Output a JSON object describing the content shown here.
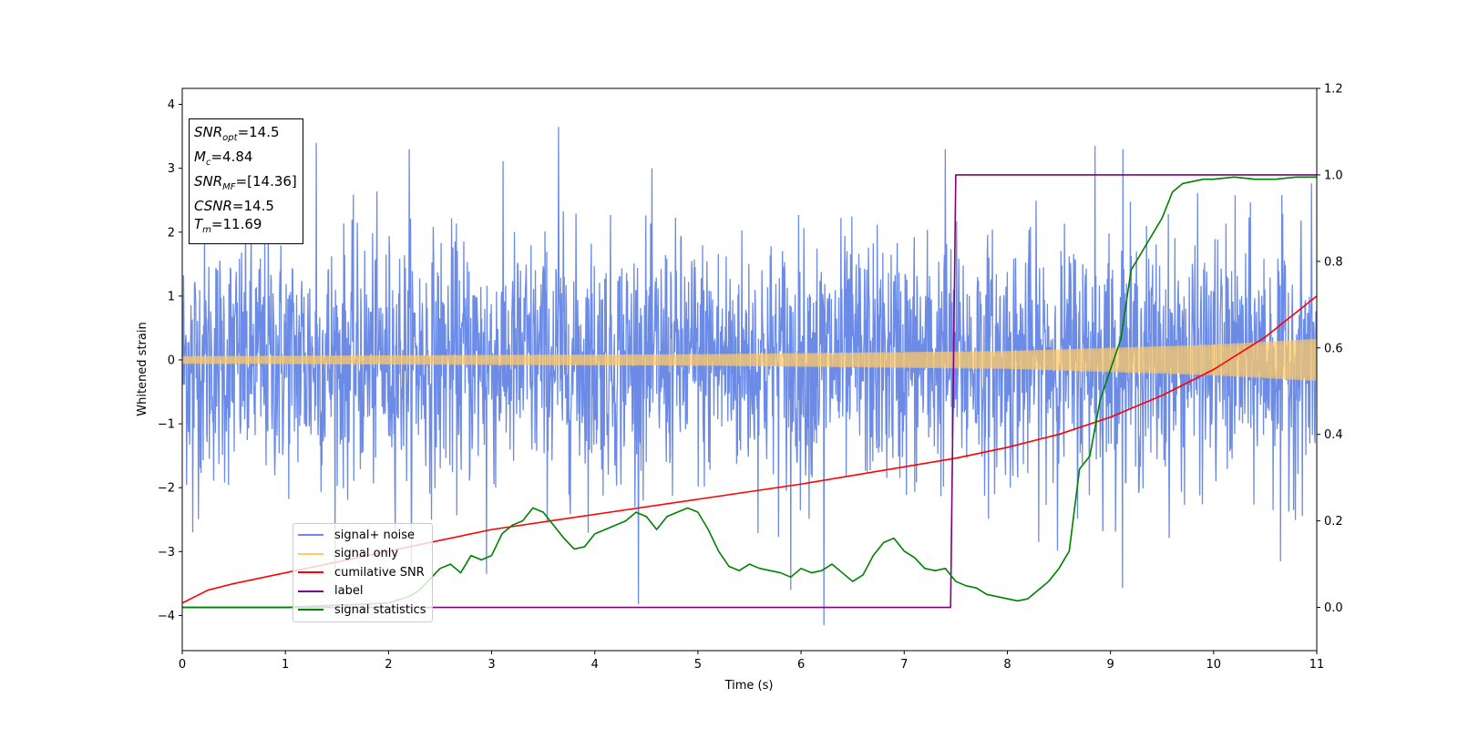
{
  "chart_data": {
    "type": "line",
    "xlabel": "Time (s)",
    "ylabel": "Whitened strain",
    "xlim": [
      0,
      11
    ],
    "ylim": [
      -4.55,
      4.25
    ],
    "y2lim": [
      -0.1,
      1.2
    ],
    "xticks": [
      "0",
      "1",
      "2",
      "3",
      "4",
      "5",
      "6",
      "7",
      "8",
      "9",
      "10",
      "11"
    ],
    "yticks": [
      "4",
      "3",
      "2",
      "1",
      "0",
      "−1",
      "−2",
      "−3",
      "−4"
    ],
    "y2ticks": [
      "1.2",
      "1.0",
      "0.8",
      "0.6",
      "0.4",
      "0.2",
      "0.0"
    ],
    "grid": false,
    "legend_position": "lower-left",
    "info_box": {
      "snr_opt_label": "SNR",
      "snr_opt_sub": "opt",
      "snr_opt_value": "=14.5",
      "mc_label": "M",
      "mc_sub": "c",
      "mc_value": "=4.84",
      "snr_mf_label": "SNR",
      "snr_mf_sub": "MF",
      "snr_mf_value": "=[14.36]",
      "csnr_label": "CSNR",
      "csnr_value": "=14.5",
      "tm_label": "T",
      "tm_sub": "m",
      "tm_value": "=11.69"
    },
    "series": [
      {
        "name": "signal+ noise",
        "color": "#6b8be6",
        "axis": "left",
        "description_values": "white noise around 0, amplitude roughly between -2.5 and 2.5",
        "x_range": [
          0,
          11
        ],
        "noise_std": 0.95,
        "peaks": [
          {
            "x": 1.3,
            "y": 3.4
          },
          {
            "x": 2.2,
            "y": 3.3
          },
          {
            "x": 3.65,
            "y": 3.65
          },
          {
            "x": 7.4,
            "y": 3.3
          },
          {
            "x": 8.85,
            "y": 3.35
          },
          {
            "x": 9.12,
            "y": 3.3
          },
          {
            "x": 6.22,
            "y": -4.15
          },
          {
            "x": 5.9,
            "y": -3.6
          },
          {
            "x": 2.95,
            "y": -3.35
          },
          {
            "x": 10.65,
            "y": -3.15
          },
          {
            "x": 0.1,
            "y": -2.7
          }
        ]
      },
      {
        "name": "signal only",
        "color": "#ffc966",
        "axis": "left",
        "envelope": [
          [
            0,
            0.06
          ],
          [
            5,
            0.09
          ],
          [
            8,
            0.14
          ],
          [
            10,
            0.24
          ],
          [
            11,
            0.33
          ]
        ]
      },
      {
        "name": "cumilative SNR",
        "color": "#ff0000",
        "axis": "right",
        "x": [
          0,
          0.25,
          0.5,
          1,
          2,
          3,
          4,
          5,
          6,
          7,
          7.5,
          8,
          8.5,
          9,
          9.5,
          10,
          10.5,
          11
        ],
        "y": [
          0.01,
          0.04,
          0.055,
          0.08,
          0.13,
          0.18,
          0.215,
          0.25,
          0.285,
          0.325,
          0.345,
          0.37,
          0.4,
          0.44,
          0.49,
          0.55,
          0.625,
          0.72
        ]
      },
      {
        "name": "label",
        "color": "#800080",
        "axis": "right",
        "x": [
          0,
          7.45,
          7.5,
          11
        ],
        "y": [
          0,
          0,
          1,
          1
        ]
      },
      {
        "name": "signal statistics",
        "color": "#008000",
        "axis": "right",
        "x": [
          0,
          1,
          1.5,
          2,
          2.2,
          2.3,
          2.4,
          2.5,
          2.6,
          2.7,
          2.8,
          2.9,
          3.0,
          3.1,
          3.2,
          3.3,
          3.4,
          3.5,
          3.6,
          3.7,
          3.8,
          3.9,
          4.0,
          4.1,
          4.2,
          4.3,
          4.4,
          4.5,
          4.6,
          4.7,
          4.8,
          4.9,
          5.0,
          5.1,
          5.2,
          5.3,
          5.4,
          5.5,
          5.6,
          5.7,
          5.8,
          5.9,
          6.0,
          6.1,
          6.2,
          6.3,
          6.4,
          6.5,
          6.6,
          6.7,
          6.8,
          6.9,
          7.0,
          7.1,
          7.2,
          7.3,
          7.4,
          7.5,
          7.6,
          7.7,
          7.8,
          7.9,
          8.0,
          8.1,
          8.2,
          8.3,
          8.4,
          8.5,
          8.6,
          8.7,
          8.8,
          8.9,
          9.0,
          9.1,
          9.2,
          9.3,
          9.4,
          9.5,
          9.6,
          9.7,
          9.8,
          9.9,
          10.0,
          10.2,
          10.4,
          10.6,
          10.8,
          11.0
        ],
        "y": [
          0.0,
          0.0,
          0.005,
          0.01,
          0.025,
          0.04,
          0.065,
          0.09,
          0.1,
          0.08,
          0.12,
          0.11,
          0.12,
          0.17,
          0.19,
          0.2,
          0.23,
          0.22,
          0.19,
          0.16,
          0.135,
          0.14,
          0.17,
          0.18,
          0.19,
          0.2,
          0.22,
          0.21,
          0.18,
          0.21,
          0.22,
          0.23,
          0.22,
          0.18,
          0.13,
          0.095,
          0.085,
          0.1,
          0.09,
          0.085,
          0.08,
          0.07,
          0.09,
          0.08,
          0.085,
          0.1,
          0.08,
          0.06,
          0.075,
          0.12,
          0.15,
          0.16,
          0.13,
          0.115,
          0.09,
          0.085,
          0.09,
          0.06,
          0.05,
          0.045,
          0.03,
          0.025,
          0.02,
          0.015,
          0.02,
          0.04,
          0.06,
          0.09,
          0.13,
          0.32,
          0.35,
          0.48,
          0.55,
          0.62,
          0.78,
          0.82,
          0.86,
          0.9,
          0.96,
          0.98,
          0.985,
          0.99,
          0.99,
          0.995,
          0.99,
          0.99,
          0.995,
          0.995
        ]
      }
    ]
  }
}
